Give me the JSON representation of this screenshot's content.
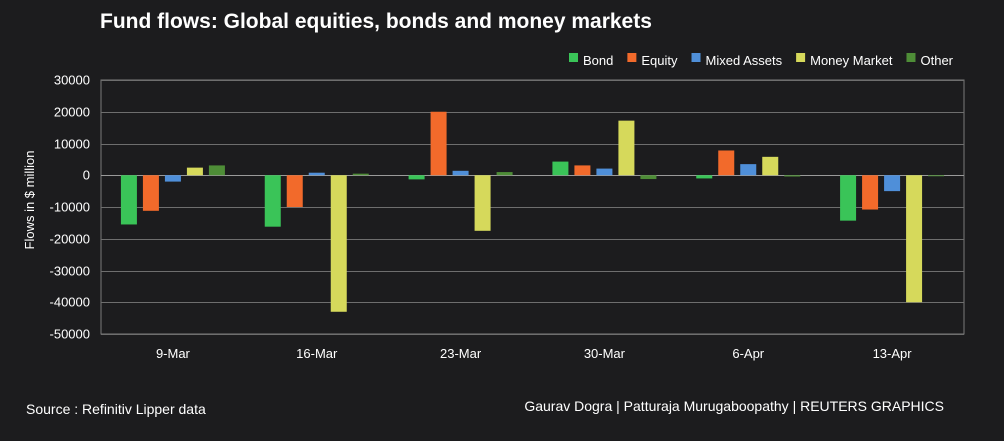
{
  "header": {
    "title": "Fund flows: Global equities, bonds and money markets"
  },
  "footer": {
    "source": "Source : Refinitiv Lipper data",
    "credit": "Gaurav Dogra  |  Patturaja Murugaboopathy  |  REUTERS GRAPHICS"
  },
  "chart_data": {
    "type": "bar",
    "title": "Fund flows: Global equities, bonds and money markets",
    "xlabel": "",
    "ylabel": "Flows in $ million",
    "ylim": [
      -50000,
      30000
    ],
    "yticks": [
      30000,
      20000,
      10000,
      0,
      -10000,
      -20000,
      -30000,
      -40000,
      -50000
    ],
    "grid": true,
    "legend_position": "top-right",
    "categories": [
      "9-Mar",
      "16-Mar",
      "23-Mar",
      "30-Mar",
      "6-Apr",
      "13-Apr"
    ],
    "series": [
      {
        "name": "Bond",
        "color": "#3ac458",
        "values": [
          -15500,
          -16200,
          -1300,
          4300,
          -1000,
          -14300
        ]
      },
      {
        "name": "Equity",
        "color": "#f26a2b",
        "values": [
          -11200,
          -10000,
          20000,
          3100,
          7800,
          -10800
        ]
      },
      {
        "name": "Mixed Assets",
        "color": "#4f8fd9",
        "values": [
          -2000,
          800,
          1400,
          2100,
          3500,
          -5000
        ]
      },
      {
        "name": "Money Market",
        "color": "#d6d95b",
        "values": [
          2400,
          -43000,
          -17500,
          17200,
          5800,
          -40000
        ]
      },
      {
        "name": "Other",
        "color": "#4e8d37",
        "values": [
          3100,
          500,
          1000,
          -1200,
          -400,
          -200
        ]
      }
    ]
  }
}
